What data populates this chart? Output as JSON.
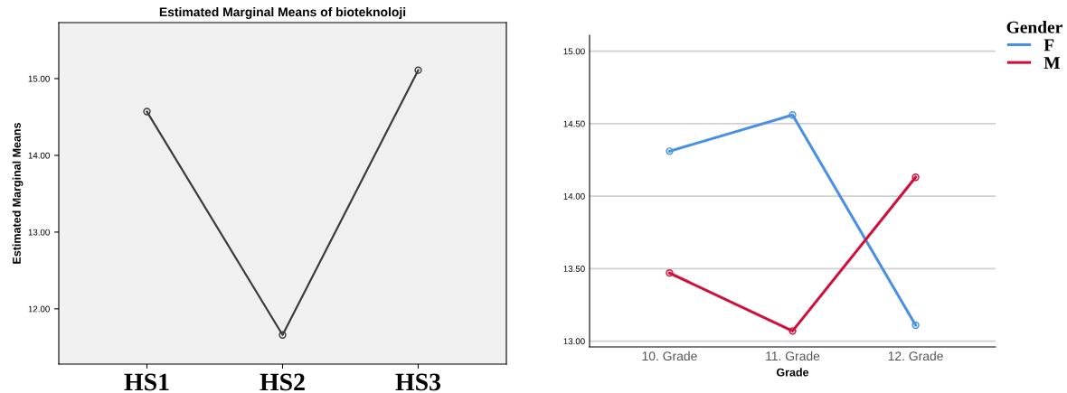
{
  "chart_data": [
    {
      "type": "line",
      "title": "Estimated Marginal Means of bioteknoloji",
      "ylabel": "Estimated Marginal Means",
      "categories": [
        "HS1",
        "HS2",
        "HS3"
      ],
      "marker": "circle",
      "series": [
        {
          "color": "#3c3c3c",
          "values": [
            14.57,
            11.66,
            15.11
          ]
        }
      ],
      "ylim": [
        11.28,
        15.73
      ],
      "yticks": [
        {
          "value": 12,
          "label": "12.00"
        },
        {
          "value": 13,
          "label": "13.00"
        },
        {
          "value": 14,
          "label": "14.00"
        },
        {
          "value": 15,
          "label": "15.00"
        }
      ]
    },
    {
      "type": "line",
      "xlabel": "Grade",
      "categories": [
        "10. Grade",
        "11. Grade",
        "12. Grade"
      ],
      "marker": "circle",
      "grid": "y",
      "legend": "top right",
      "legend_title": "Gender",
      "series": [
        {
          "name": "F",
          "color": "#4a90e2",
          "values": [
            14.31,
            14.56,
            13.11
          ]
        },
        {
          "name": "M",
          "color": "#d0103a",
          "values": [
            13.47,
            13.07,
            14.13
          ]
        }
      ],
      "ylim": [
        12.96,
        15.11
      ],
      "yticks": [
        {
          "value": 13,
          "label": "13.00"
        },
        {
          "value": 13.5,
          "label": "13.50"
        },
        {
          "value": 14,
          "label": "14.00"
        },
        {
          "value": 14.5,
          "label": "14.50"
        },
        {
          "value": 15,
          "label": "15.00"
        }
      ]
    }
  ]
}
